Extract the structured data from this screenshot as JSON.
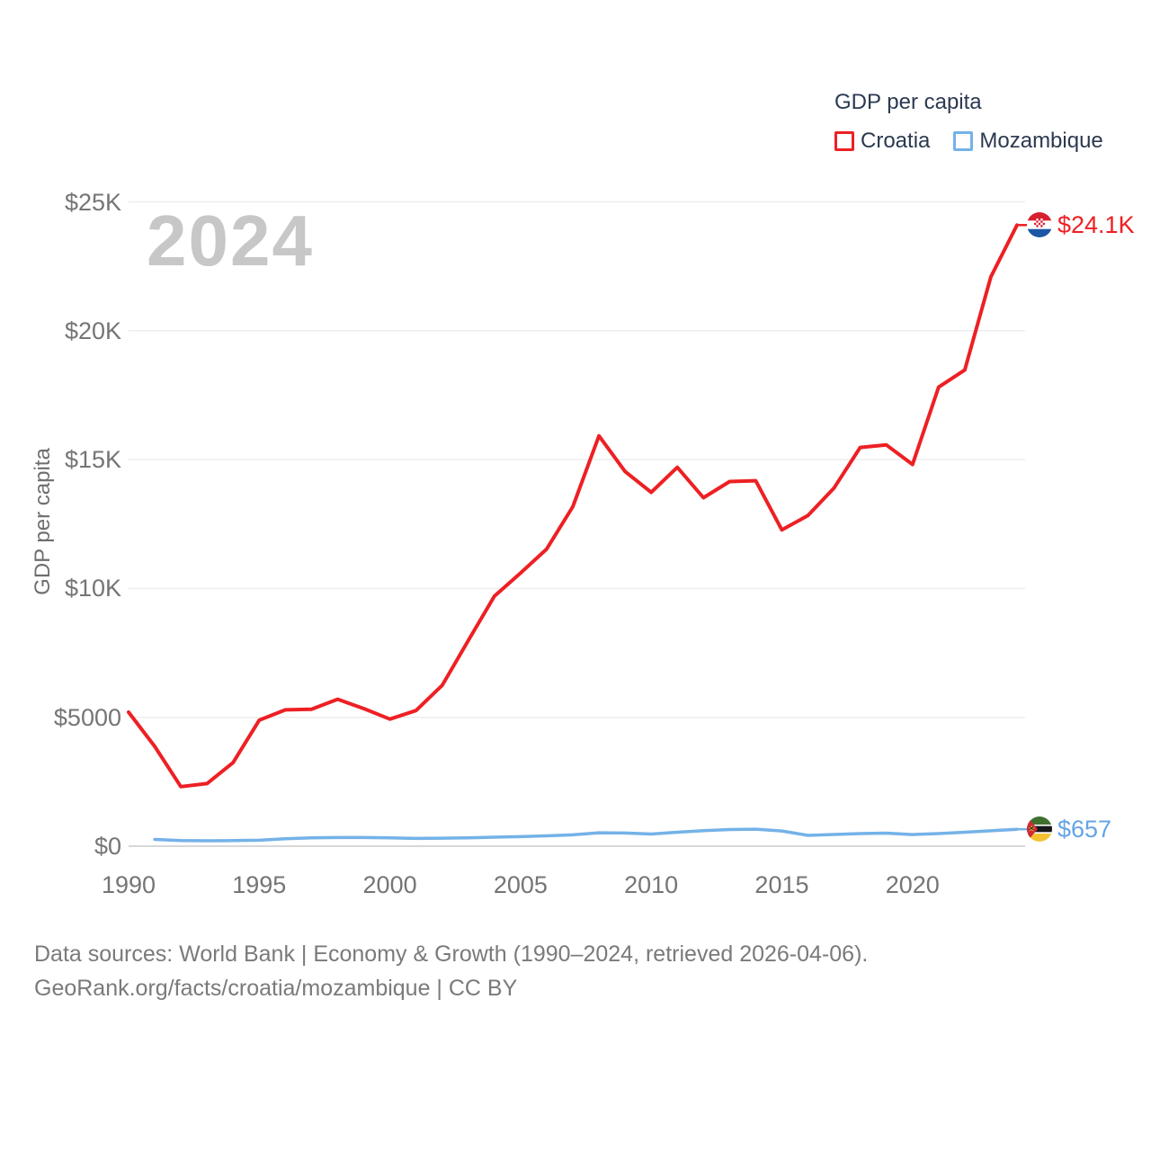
{
  "legend": {
    "title": "GDP per capita",
    "items": [
      {
        "id": "croatia",
        "label": "Croatia",
        "color": "#ed2024"
      },
      {
        "id": "mozambique",
        "label": "Mozambique",
        "color": "#74b2e8"
      }
    ]
  },
  "watermark": "2024",
  "y_axis": {
    "title": "GDP per capita",
    "ticks": [
      {
        "label": "$25K",
        "value": 25000
      },
      {
        "label": "$20K",
        "value": 20000
      },
      {
        "label": "$15K",
        "value": 15000
      },
      {
        "label": "$10K",
        "value": 10000
      },
      {
        "label": "$5000",
        "value": 5000
      },
      {
        "label": "$0",
        "value": 0
      }
    ]
  },
  "x_axis": {
    "ticks": [
      {
        "label": "1990",
        "value": 1990
      },
      {
        "label": "1995",
        "value": 1995
      },
      {
        "label": "2000",
        "value": 2000
      },
      {
        "label": "2005",
        "value": 2005
      },
      {
        "label": "2010",
        "value": 2010
      },
      {
        "label": "2015",
        "value": 2015
      },
      {
        "label": "2020",
        "value": 2020
      }
    ]
  },
  "chart_data": {
    "type": "line",
    "title": "GDP per capita",
    "xlabel": "",
    "ylabel": "GDP per capita",
    "ylim": [
      0,
      25000
    ],
    "xlim": [
      1990,
      2024
    ],
    "grid": "horizontal",
    "legend_position": "top-right",
    "x": [
      1990,
      1991,
      1992,
      1993,
      1994,
      1995,
      1996,
      1997,
      1998,
      1999,
      2000,
      2001,
      2002,
      2003,
      2004,
      2005,
      2006,
      2007,
      2008,
      2009,
      2010,
      2011,
      2012,
      2013,
      2014,
      2015,
      2016,
      2017,
      2018,
      2019,
      2020,
      2021,
      2022,
      2023,
      2024
    ],
    "series": [
      {
        "name": "Croatia",
        "color": "#ed2024",
        "values": [
          5200,
          3870,
          2310,
          2430,
          3240,
          4890,
          5290,
          5310,
          5700,
          5340,
          4930,
          5260,
          6240,
          7980,
          9700,
          10600,
          11530,
          13170,
          15920,
          14540,
          13730,
          14700,
          13520,
          14150,
          14180,
          12270,
          12830,
          13900,
          15470,
          15570,
          14810,
          17810,
          18480,
          22090,
          24100
        ]
      },
      {
        "name": "Mozambique",
        "color": "#74b2e8",
        "values": [
          null,
          260,
          220,
          210,
          215,
          230,
          290,
          320,
          335,
          335,
          325,
          300,
          310,
          320,
          350,
          370,
          400,
          440,
          520,
          510,
          470,
          540,
          600,
          645,
          660,
          590,
          420,
          455,
          490,
          505,
          450,
          490,
          540,
          595,
          657
        ]
      }
    ]
  },
  "end_labels": {
    "croatia": {
      "label": "$24.1K",
      "icon": "croatia-flag-icon"
    },
    "mozambique": {
      "label": "$657",
      "icon": "mozambique-flag-icon"
    }
  },
  "footer": {
    "line1": "Data sources: World Bank | Economy & Growth (1990–2024, retrieved 2026-04-06).",
    "line2": "GeoRank.org/facts/croatia/mozambique | CC BY"
  },
  "colors": {
    "croatia_line": "#ed2024",
    "mozambique_line": "#74b2e8",
    "gridline": "#ededed",
    "zero_line": "#d8d8d8",
    "axis_text": "#757575",
    "legend_text": "#2b3950",
    "watermark": "#c7c7c7",
    "footer_text": "#7a7a7a"
  }
}
